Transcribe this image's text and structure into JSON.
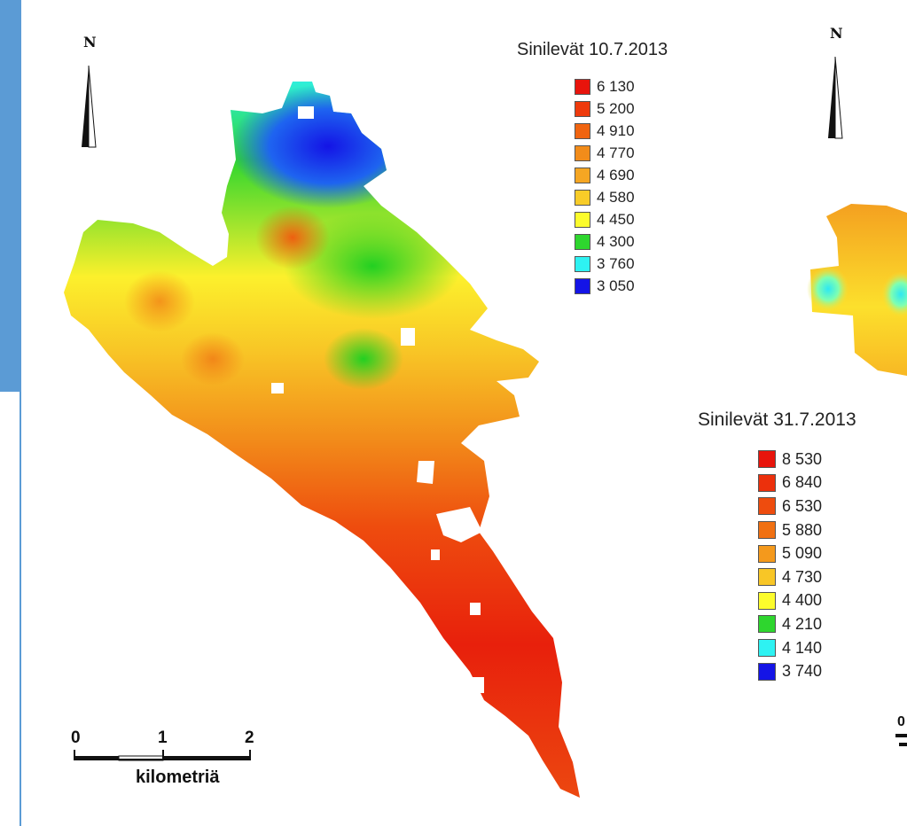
{
  "north_label": "N",
  "map1": {
    "legend_title": "Sinilevät 10.7.2013",
    "classes": [
      {
        "label": "6 130",
        "color": "#e8140c"
      },
      {
        "label": "5 200",
        "color": "#ee3a0c"
      },
      {
        "label": "4 910",
        "color": "#f06410"
      },
      {
        "label": "4 770",
        "color": "#f28c1a"
      },
      {
        "label": "4 690",
        "color": "#f5a623"
      },
      {
        "label": "4 580",
        "color": "#f8cc28"
      },
      {
        "label": "4 450",
        "color": "#fcfc2c"
      },
      {
        "label": "4 300",
        "color": "#2ed62e"
      },
      {
        "label": "3 760",
        "color": "#2ef2f2"
      },
      {
        "label": "3 050",
        "color": "#1414e6"
      }
    ]
  },
  "map2": {
    "legend_title": "Sinilevät 31.7.2013",
    "classes": [
      {
        "label": "8 530",
        "color": "#e8140c"
      },
      {
        "label": "6 840",
        "color": "#ec300c"
      },
      {
        "label": "6 530",
        "color": "#ee4c0e"
      },
      {
        "label": "5 880",
        "color": "#f07012"
      },
      {
        "label": "5 090",
        "color": "#f4991c"
      },
      {
        "label": "4 730",
        "color": "#f8c626"
      },
      {
        "label": "4 400",
        "color": "#fcfc2c"
      },
      {
        "label": "4 210",
        "color": "#2ed62e"
      },
      {
        "label": "4 140",
        "color": "#2ef2f2"
      },
      {
        "label": "3 740",
        "color": "#1414e6"
      }
    ]
  },
  "scalebar": {
    "ticks": [
      "0",
      "1",
      "2"
    ],
    "unit": "kilometriä",
    "partial_tick": "0"
  }
}
